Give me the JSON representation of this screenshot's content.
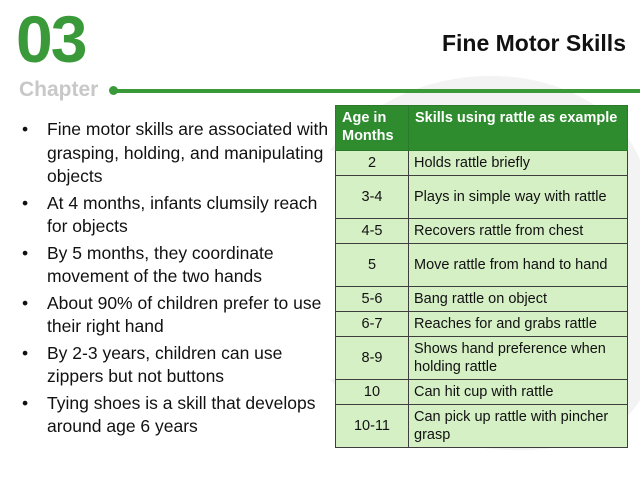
{
  "header": {
    "chapter_number": "03",
    "chapter_label": "Chapter",
    "title": "Fine Motor Skills"
  },
  "bullets": [
    "Fine motor skills are associated with grasping, holding, and manipulating objects",
    "At 4 months, infants clumsily reach for objects",
    "By 5 months, they coordinate movement of the two hands",
    "About 90% of children prefer to use their right hand",
    "By 2-3 years, children can use zippers but not buttons",
    "Tying shoes is a skill that develops around age 6 years"
  ],
  "table": {
    "headers": [
      "Age in Months",
      "Skills using rattle as example"
    ],
    "rows": [
      {
        "age": "2",
        "skill": "Holds rattle briefly"
      },
      {
        "age": "3-4",
        "skill": "Plays in simple way with rattle"
      },
      {
        "age": "4-5",
        "skill": "Recovers rattle from chest"
      },
      {
        "age": "5",
        "skill": "Move rattle from hand to hand"
      },
      {
        "age": "5-6",
        "skill": "Bang rattle on object"
      },
      {
        "age": "6-7",
        "skill": "Reaches for and grabs rattle"
      },
      {
        "age": "8-9",
        "skill": "Shows hand preference when holding rattle"
      },
      {
        "age": "10",
        "skill": "Can hit cup with rattle"
      },
      {
        "age": "10-11",
        "skill": "Can pick up rattle with pincher grasp"
      }
    ]
  },
  "colors": {
    "accent_green": "#3a9a3a",
    "table_header": "#2e8b2e",
    "table_cell": "#d6f0c6",
    "chapter_gray": "#c8c8c8"
  }
}
